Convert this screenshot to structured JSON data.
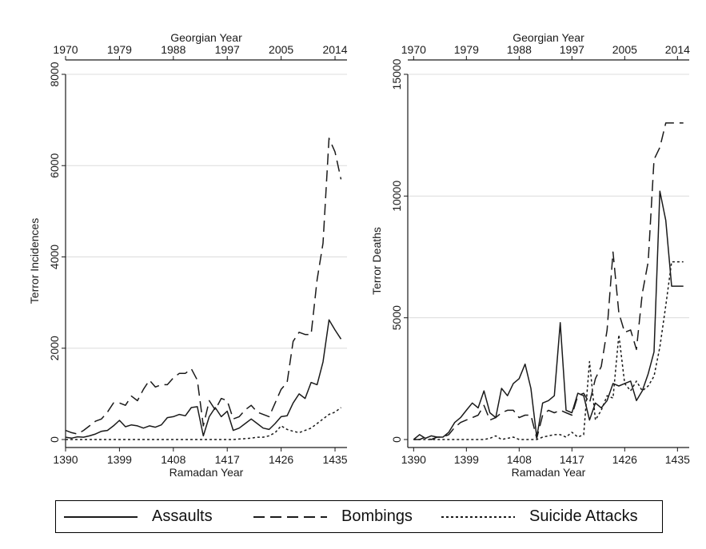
{
  "chart_data": [
    {
      "type": "line",
      "top_xlabel": "Georgian Year",
      "top_ticks": [
        "1970",
        "1979",
        "1988",
        "1997",
        "2005",
        "2014"
      ],
      "xlabel": "Ramadan Year",
      "ylabel": "Terror Incidences",
      "xlim": [
        1390,
        1437
      ],
      "x_ticks": [
        1390,
        1399,
        1408,
        1417,
        1426,
        1435
      ],
      "ylim": [
        0,
        8000
      ],
      "y_ticks": [
        0,
        2000,
        4000,
        6000,
        8000
      ],
      "grid": true,
      "x": [
        1390,
        1391,
        1392,
        1393,
        1394,
        1395,
        1396,
        1397,
        1398,
        1399,
        1400,
        1401,
        1402,
        1403,
        1404,
        1405,
        1406,
        1407,
        1408,
        1409,
        1410,
        1411,
        1412,
        1413,
        1414,
        1415,
        1416,
        1417,
        1418,
        1419,
        1420,
        1421,
        1422,
        1423,
        1424,
        1425,
        1426,
        1427,
        1428,
        1429,
        1430,
        1431,
        1432,
        1433,
        1434,
        1435,
        1436
      ],
      "series": [
        {
          "name": "Assaults",
          "style": "solid",
          "values": [
            50,
            30,
            60,
            50,
            80,
            120,
            180,
            200,
            300,
            420,
            280,
            320,
            300,
            250,
            300,
            270,
            320,
            480,
            500,
            550,
            520,
            700,
            720,
            80,
            500,
            700,
            500,
            620,
            200,
            250,
            350,
            450,
            350,
            250,
            220,
            350,
            500,
            520,
            800,
            1000,
            900,
            1250,
            1200,
            1700,
            2620,
            2400,
            2200
          ]
        },
        {
          "name": "Bombings",
          "style": "dash",
          "values": [
            200,
            150,
            120,
            200,
            300,
            400,
            450,
            600,
            800,
            800,
            750,
            950,
            850,
            1100,
            1300,
            1150,
            1200,
            1200,
            1350,
            1450,
            1450,
            1550,
            1300,
            300,
            850,
            650,
            900,
            850,
            450,
            500,
            650,
            750,
            600,
            550,
            500,
            800,
            1100,
            1250,
            2150,
            2350,
            2300,
            2300,
            3500,
            4300,
            6600,
            6300,
            5700
          ]
        },
        {
          "name": "Suicide Attacks",
          "style": "dot",
          "values": [
            0,
            0,
            0,
            0,
            0,
            0,
            0,
            0,
            0,
            0,
            0,
            0,
            0,
            0,
            0,
            0,
            0,
            0,
            0,
            0,
            0,
            0,
            0,
            0,
            0,
            0,
            0,
            0,
            0,
            10,
            20,
            30,
            50,
            50,
            80,
            150,
            300,
            220,
            180,
            150,
            200,
            250,
            350,
            450,
            550,
            600,
            700
          ]
        }
      ]
    },
    {
      "type": "line",
      "top_xlabel": "Georgian Year",
      "top_ticks": [
        "1970",
        "1979",
        "1988",
        "1997",
        "2005",
        "2014"
      ],
      "xlabel": "Ramadan Year",
      "ylabel": "Terror Deaths",
      "xlim": [
        1389,
        1437
      ],
      "x_ticks": [
        1390,
        1399,
        1408,
        1417,
        1426,
        1435
      ],
      "ylim": [
        0,
        15000
      ],
      "y_ticks": [
        0,
        5000,
        10000,
        15000
      ],
      "grid": true,
      "x": [
        1390,
        1391,
        1392,
        1393,
        1394,
        1395,
        1396,
        1397,
        1398,
        1399,
        1400,
        1401,
        1402,
        1403,
        1404,
        1405,
        1406,
        1407,
        1408,
        1409,
        1410,
        1411,
        1412,
        1413,
        1414,
        1415,
        1416,
        1417,
        1418,
        1419,
        1420,
        1421,
        1422,
        1423,
        1424,
        1425,
        1426,
        1427,
        1428,
        1429,
        1430,
        1431,
        1432,
        1433,
        1434,
        1435,
        1436
      ],
      "series": [
        {
          "name": "Assaults",
          "style": "solid",
          "values": [
            0,
            200,
            50,
            150,
            100,
            100,
            300,
            700,
            900,
            1200,
            1500,
            1300,
            2000,
            1100,
            900,
            2100,
            1800,
            2300,
            2500,
            3100,
            2100,
            100,
            1500,
            1600,
            1800,
            4800,
            1200,
            1100,
            1900,
            1800,
            800,
            1500,
            1300,
            1600,
            2300,
            2200,
            2300,
            2400,
            1600,
            2000,
            2700,
            3600,
            10200,
            9000,
            6300,
            6300,
            6300
          ]
        },
        {
          "name": "Bombings",
          "style": "dash",
          "values": [
            0,
            0,
            100,
            0,
            100,
            100,
            200,
            500,
            700,
            800,
            900,
            1000,
            1400,
            800,
            900,
            1100,
            1200,
            1200,
            900,
            1000,
            1000,
            50,
            1000,
            1200,
            1100,
            1200,
            1100,
            1000,
            1800,
            1900,
            1500,
            2500,
            3000,
            4500,
            7700,
            5200,
            4400,
            4500,
            3700,
            6000,
            7300,
            11500,
            12000,
            13000,
            13000,
            13000,
            13000
          ]
        },
        {
          "name": "Suicide Attacks",
          "style": "dot",
          "values": [
            0,
            0,
            0,
            0,
            0,
            0,
            0,
            0,
            0,
            0,
            0,
            0,
            0,
            50,
            150,
            0,
            50,
            100,
            0,
            0,
            0,
            0,
            100,
            150,
            200,
            200,
            100,
            300,
            100,
            200,
            3200,
            800,
            1200,
            1800,
            1700,
            4300,
            2300,
            2000,
            2400,
            2000,
            2200,
            2600,
            3800,
            5500,
            7300,
            7300,
            7300
          ]
        }
      ]
    }
  ],
  "legend": [
    {
      "name": "Assaults",
      "style": "solid"
    },
    {
      "name": "Bombings",
      "style": "dash"
    },
    {
      "name": "Suicide Attacks",
      "style": "dot"
    }
  ],
  "colors": {
    "line": "#1a1a1a",
    "grid": "#dcdcdc",
    "axis": "#1a1a1a"
  }
}
